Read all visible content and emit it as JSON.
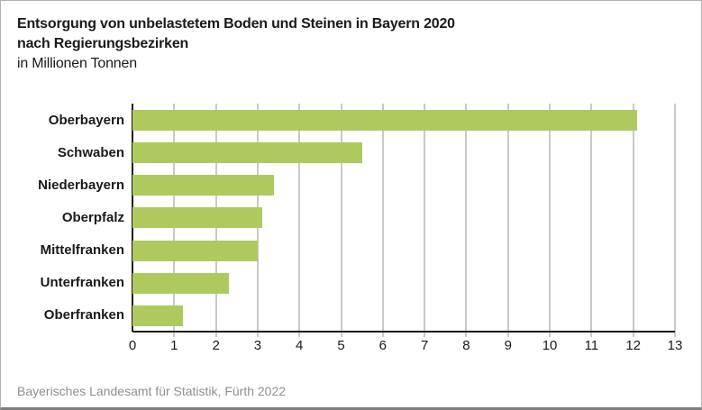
{
  "header": {
    "title_line1": "Entsorgung von unbelastetem Boden und Steinen in Bayern 2020",
    "title_line2": "nach Regierungsbezirken",
    "subtitle": "in Millionen Tonnen"
  },
  "footer": {
    "source": "Bayerisches Landesamt für Statistik, Fürth 2022"
  },
  "colors": {
    "bar": "#aeca5e",
    "gridline": "#c9c9c9",
    "axis": "#1a1a1a",
    "text": "#1a1a1a",
    "source_text": "#8f8f8f",
    "frame_bottom": "#7e7e7e"
  },
  "chart_data": {
    "type": "bar",
    "orientation": "horizontal",
    "title": "Entsorgung von unbelastetem Boden und Steinen in Bayern 2020 nach Regierungsbezirken",
    "units_label": "in Millionen Tonnen",
    "categories": [
      "Oberbayern",
      "Schwaben",
      "Niederbayern",
      "Oberpfalz",
      "Mittelfranken",
      "Unterfranken",
      "Oberfranken"
    ],
    "values": [
      12.1,
      5.5,
      3.4,
      3.1,
      3.0,
      2.3,
      1.2
    ],
    "xlim": [
      0,
      13
    ],
    "x_ticks": [
      "0",
      "1",
      "2",
      "3",
      "4",
      "5",
      "6",
      "7",
      "8",
      "9",
      "10",
      "11",
      "12",
      "13"
    ],
    "grid": true,
    "legend": "none"
  }
}
